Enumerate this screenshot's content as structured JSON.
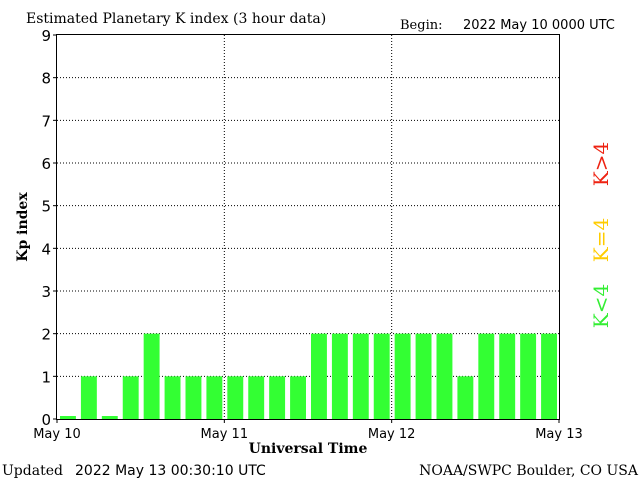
{
  "chart_data": {
    "type": "bar",
    "title": "Estimated Planetary K index (3 hour data)",
    "begin_label": "Begin:",
    "begin_value": "2022 May 10 0000 UTC",
    "xlabel": "Universal Time",
    "ylabel": "Kp index",
    "ylim": [
      0,
      9
    ],
    "y_ticks": [
      "0",
      "1",
      "2",
      "3",
      "4",
      "5",
      "6",
      "7",
      "8",
      "9"
    ],
    "x_ticks": [
      "May 10",
      "May 11",
      "May 12",
      "May 13"
    ],
    "grid": "dotted",
    "bar_color": "#33ff33",
    "values": [
      0.07,
      1,
      0.07,
      1,
      2,
      1,
      1,
      1,
      1,
      1,
      1,
      1,
      2,
      2,
      2,
      2,
      2,
      2,
      2,
      1,
      2,
      2,
      2,
      2
    ],
    "legend": [
      {
        "label": "K<4",
        "color": "#33ee33"
      },
      {
        "label": "K=4",
        "color": "#ffcc00"
      },
      {
        "label": "K>4",
        "color": "#ee2211"
      }
    ]
  },
  "footer": {
    "updated_label": "Updated",
    "updated_value": "2022 May 13 00:30:10 UTC",
    "source": "NOAA/SWPC Boulder, CO USA"
  }
}
